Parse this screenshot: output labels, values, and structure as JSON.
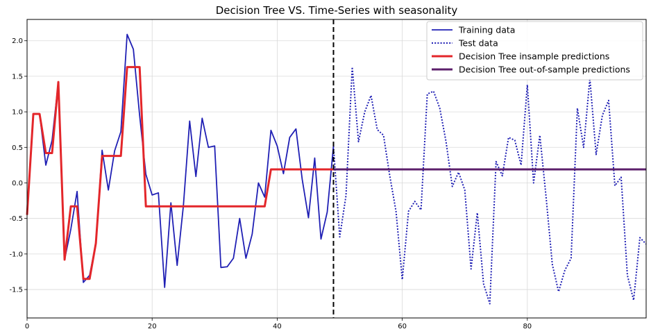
{
  "chart_data": {
    "type": "line",
    "title": "Decision Tree VS. Time-Series with seasonality",
    "xlabel": "",
    "ylabel": "",
    "xlim": [
      0,
      99
    ],
    "ylim": [
      -1.9,
      2.3
    ],
    "xticks": [
      0,
      20,
      40,
      60,
      80
    ],
    "yticks": [
      -1.5,
      -1.0,
      -0.5,
      0.0,
      0.5,
      1.0,
      1.5,
      2.0
    ],
    "grid": true,
    "legend_position": "top-right",
    "vline": {
      "x": 49,
      "color": "#000000",
      "style": "dashed"
    },
    "series": [
      {
        "name": "Training data",
        "color": "#1f1fb4",
        "style": "solid",
        "x": [
          0,
          1,
          2,
          3,
          4,
          5,
          6,
          7,
          8,
          9,
          10,
          11,
          12,
          13,
          14,
          15,
          16,
          17,
          18,
          19,
          20,
          21,
          22,
          23,
          24,
          25,
          26,
          27,
          28,
          29,
          30,
          31,
          32,
          33,
          34,
          35,
          36,
          37,
          38,
          39,
          40,
          41,
          42,
          43,
          44,
          45,
          46,
          47,
          48,
          49
        ],
        "values": [
          -0.45,
          0.97,
          0.97,
          0.25,
          0.6,
          1.42,
          -1.08,
          -0.65,
          -0.12,
          -1.4,
          -1.3,
          -0.85,
          0.46,
          -0.1,
          0.45,
          0.72,
          2.09,
          1.88,
          0.95,
          0.12,
          -0.17,
          -0.14,
          -1.47,
          -0.28,
          -1.16,
          -0.32,
          0.87,
          0.09,
          0.91,
          0.5,
          0.52,
          -1.19,
          -1.18,
          -1.06,
          -0.5,
          -1.06,
          -0.72,
          0.0,
          -0.2,
          0.74,
          0.52,
          0.13,
          0.64,
          0.76,
          0.05,
          -0.49,
          0.35,
          -0.79,
          -0.41,
          0.52
        ]
      },
      {
        "name": "Test data",
        "color": "#1f1fb4",
        "style": "dotted",
        "x": [
          49,
          50,
          51,
          52,
          53,
          54,
          55,
          56,
          57,
          58,
          59,
          60,
          61,
          62,
          63,
          64,
          65,
          66,
          67,
          68,
          69,
          70,
          71,
          72,
          73,
          74,
          75,
          76,
          77,
          78,
          79,
          80,
          81,
          82,
          83,
          84,
          85,
          86,
          87,
          88,
          89,
          90,
          91,
          92,
          93,
          94,
          95,
          96,
          97,
          98,
          99
        ],
        "values": [
          0.52,
          -0.76,
          -0.18,
          1.63,
          0.58,
          1.0,
          1.23,
          0.75,
          0.67,
          0.1,
          -0.4,
          -1.36,
          -0.4,
          -0.26,
          -0.38,
          1.25,
          1.29,
          1.05,
          0.58,
          -0.05,
          0.15,
          -0.1,
          -1.21,
          -0.42,
          -1.42,
          -1.7,
          0.3,
          0.1,
          0.64,
          0.6,
          0.25,
          1.38,
          0.0,
          0.67,
          -0.2,
          -1.15,
          -1.53,
          -1.23,
          -1.06,
          1.05,
          0.5,
          1.47,
          0.4,
          0.95,
          1.16,
          -0.04,
          0.08,
          -1.3,
          -1.65,
          -0.77,
          -0.86
        ]
      },
      {
        "name": "Decision Tree insample predictions",
        "color": "#e3262a",
        "style": "solid",
        "x": [
          0,
          1,
          2,
          3,
          4,
          5,
          6,
          7,
          8,
          9,
          10,
          11,
          12,
          13,
          14,
          15,
          16,
          17,
          18,
          19,
          20,
          21,
          22,
          23,
          24,
          25,
          26,
          27,
          28,
          29,
          30,
          31,
          32,
          33,
          34,
          35,
          36,
          37,
          38,
          39,
          40,
          41,
          42,
          43,
          44,
          45,
          46,
          47,
          48,
          49
        ],
        "values": [
          -0.45,
          0.97,
          0.97,
          0.42,
          0.42,
          1.42,
          -1.08,
          -0.33,
          -0.33,
          -1.35,
          -1.35,
          -0.85,
          0.38,
          0.38,
          0.38,
          0.38,
          1.63,
          1.63,
          1.63,
          -0.33,
          -0.33,
          -0.33,
          -0.33,
          -0.33,
          -0.33,
          -0.33,
          -0.33,
          -0.33,
          -0.33,
          -0.33,
          -0.33,
          -0.33,
          -0.33,
          -0.33,
          -0.33,
          -0.33,
          -0.33,
          -0.33,
          -0.33,
          0.19,
          0.19,
          0.19,
          0.19,
          0.19,
          0.19,
          0.19,
          0.19,
          0.19,
          0.19,
          0.19
        ]
      },
      {
        "name": "Decision Tree out-of-sample predictions",
        "color": "#5c1f6b",
        "style": "solid",
        "x": [
          49,
          99
        ],
        "values": [
          0.19,
          0.19
        ]
      }
    ]
  }
}
